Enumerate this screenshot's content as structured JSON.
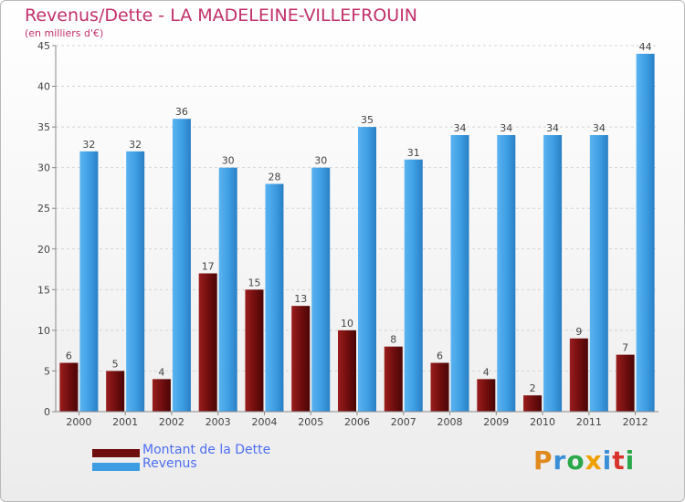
{
  "title": "Revenus/Dette - LA MADELEINE-VILLEFROUIN",
  "subtitle": "(en milliers d'€)",
  "colors": {
    "dette": "#6e0d0d",
    "revenus": "#3d9de3",
    "title": "#c2306a",
    "legend_text": "#4d6df3"
  },
  "chart_data": {
    "type": "bar",
    "categories": [
      "2000",
      "2001",
      "2002",
      "2003",
      "2004",
      "2005",
      "2006",
      "2007",
      "2008",
      "2009",
      "2010",
      "2011",
      "2012"
    ],
    "series": [
      {
        "name": "Montant de la Dette",
        "values": [
          6,
          5,
          4,
          17,
          15,
          13,
          10,
          8,
          6,
          4,
          2,
          9,
          7
        ]
      },
      {
        "name": "Revenus",
        "values": [
          32,
          32,
          36,
          30,
          28,
          30,
          35,
          31,
          34,
          34,
          34,
          34,
          44
        ]
      }
    ],
    "ylim": [
      0,
      45
    ],
    "yticks": [
      0,
      5,
      10,
      15,
      20,
      25,
      30,
      35,
      40,
      45
    ],
    "grid": true,
    "legend": "bottom-left"
  },
  "legend": {
    "dette_label": "Montant de la Dette",
    "revenus_label": "Revenus"
  },
  "logo": {
    "letters": [
      {
        "ch": "P",
        "color": "#e08a1e"
      },
      {
        "ch": "r",
        "color": "#3a8fd6"
      },
      {
        "ch": "o",
        "color": "#2aa84a"
      },
      {
        "ch": "x",
        "color": "#f0a000"
      },
      {
        "ch": "i",
        "color": "#3a8fd6"
      },
      {
        "ch": "t",
        "color": "#d9342b"
      },
      {
        "ch": "i",
        "color": "#2aa84a"
      }
    ]
  }
}
